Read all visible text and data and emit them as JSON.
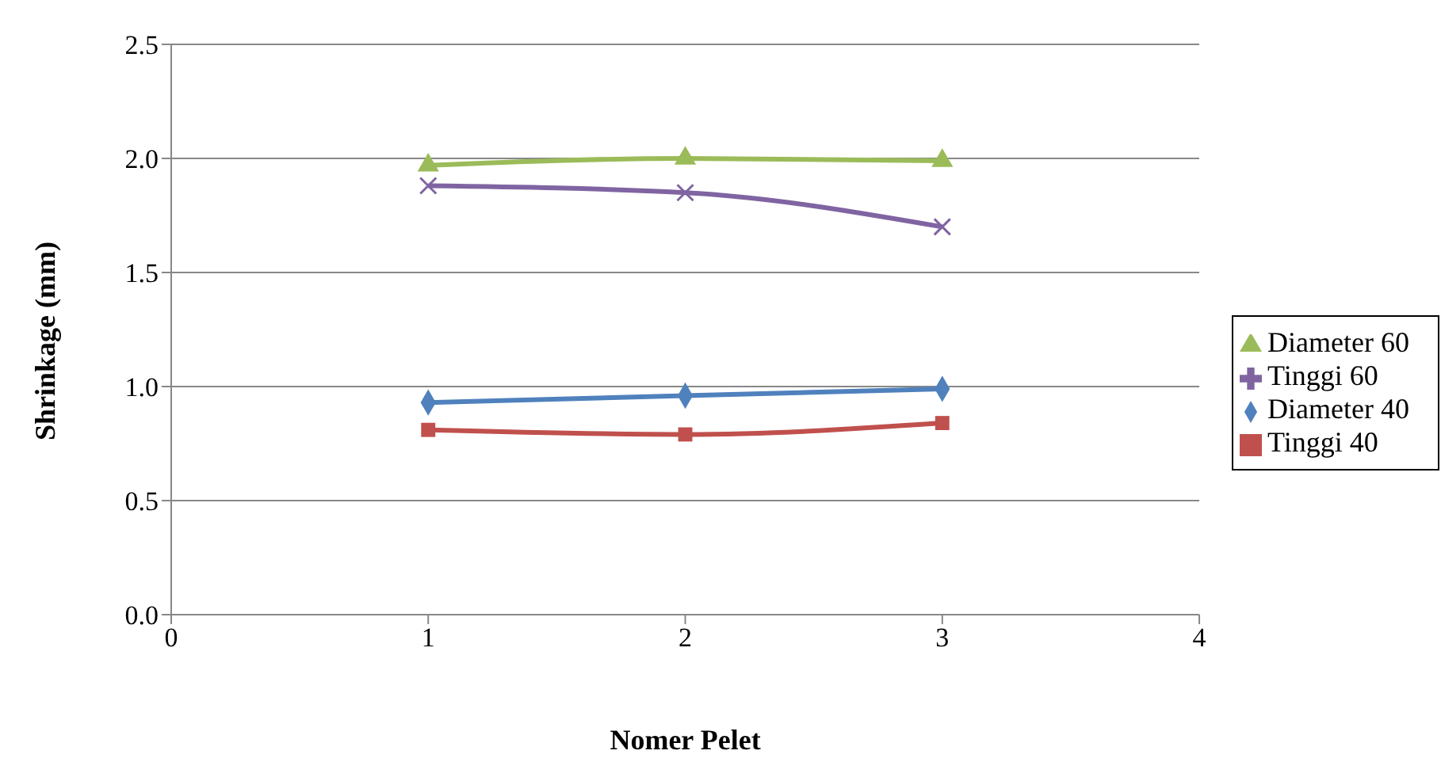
{
  "chart_data": {
    "type": "line",
    "xlabel": "Nomer Pelet",
    "ylabel": "Shrinkage (mm)",
    "x": [
      1,
      2,
      3
    ],
    "series": [
      {
        "name": "Diameter 60",
        "color": "#9bbb59",
        "marker": "triangle",
        "values": [
          1.97,
          2.0,
          1.99
        ]
      },
      {
        "name": "Tinggi 60",
        "color": "#8064a2",
        "marker": "cross",
        "values": [
          1.88,
          1.85,
          1.7
        ]
      },
      {
        "name": "Diameter 40",
        "color": "#4f81bd",
        "marker": "diamond",
        "values": [
          0.93,
          0.96,
          0.99
        ]
      },
      {
        "name": "Tinggi 40",
        "color": "#c0504d",
        "marker": "square",
        "values": [
          0.81,
          0.79,
          0.84
        ]
      }
    ],
    "xlim": [
      0,
      4
    ],
    "xticks": [
      0,
      1,
      2,
      3,
      4
    ],
    "ylim": [
      0,
      2.5
    ],
    "yticks": [
      {
        "value": 0,
        "label": "0.0"
      },
      {
        "value": 0.5,
        "label": "0.5"
      },
      {
        "value": 1,
        "label": "1.0"
      },
      {
        "value": 1.5,
        "label": "1.5"
      },
      {
        "value": 2,
        "label": "2.0"
      },
      {
        "value": 2.5,
        "label": "2.5"
      }
    ],
    "grid": "y",
    "legend": "right",
    "line_style": "solid"
  }
}
